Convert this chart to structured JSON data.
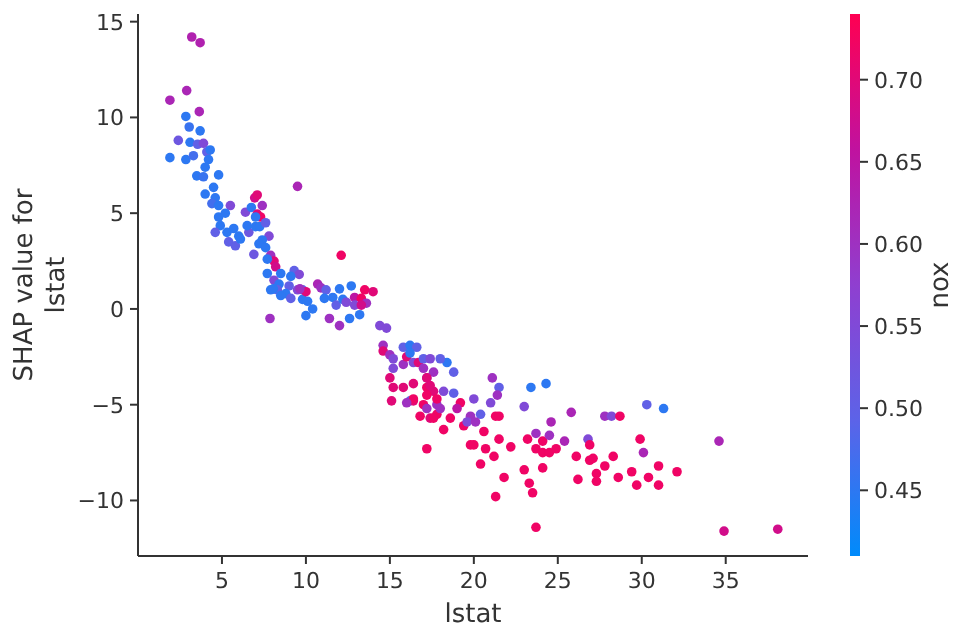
{
  "chart_data": {
    "type": "scatter",
    "xlabel": "lstat",
    "ylabel": "SHAP value for\nlstat",
    "clabel": "nox",
    "xlim": [
      0,
      39.9
    ],
    "ylim": [
      -12.9,
      15.4
    ],
    "xticks": [
      5,
      10,
      15,
      20,
      25,
      30,
      35
    ],
    "yticks": [
      -10,
      -5,
      0,
      5,
      10,
      15
    ],
    "clim": [
      0.41,
      0.74
    ],
    "cticks": [
      0.45,
      {
        "value": 0.5,
        "label": "0.50"
      },
      0.55,
      {
        "value": 0.6,
        "label": "0.60"
      },
      0.65,
      {
        "value": 0.7,
        "label": "0.70"
      }
    ],
    "grid": false,
    "x": [
      1.9,
      3.2,
      3.7,
      2.9,
      3.65,
      1.9,
      2.4,
      2.85,
      3.05,
      3.1,
      3.7,
      2.85,
      3.3,
      3.55,
      3.9,
      4.1,
      4.3,
      4.2,
      3.5,
      3.9,
      4.8,
      4.0,
      4.5,
      4.0,
      4.6,
      4.4,
      4.8,
      5.5,
      5.2,
      4.8,
      4.9,
      4.6,
      5.3,
      5.7,
      6.0,
      5.4,
      5.8,
      6.1,
      6.6,
      6.5,
      6.4,
      6.95,
      7.1,
      7.4,
      6.75,
      7.1,
      7.3,
      7.0,
      7.0,
      7.25,
      7.6,
      7.8,
      7.4,
      7.2,
      7.6,
      6.9,
      7.9,
      8.1,
      7.7,
      8.2,
      9.5,
      12.1,
      7.7,
      8.1,
      8.4,
      9.3,
      9.6,
      9.1,
      8.5,
      9.0,
      9.5,
      9.8,
      8.8,
      8.3,
      8.5,
      7.9,
      9.1,
      9.8,
      10.1,
      10.0,
      10.7,
      10.9,
      11.2,
      11.6,
      11.1,
      11.8,
      12.2,
      12.7,
      12.4,
      12.9,
      13.3,
      13.5,
      13.6,
      12.9,
      13.3,
      7.86,
      8.06,
      9.64,
      10.0,
      10.4,
      11.4,
      12.0,
      12.0,
      12.6,
      13.2,
      14.0,
      14.4,
      14.8,
      14.6,
      14.6,
      15.0,
      15.2,
      15.2,
      15.0,
      15.2,
      15.1,
      15.8,
      15.8,
      16.2,
      16.6,
      16.0,
      16.4,
      16.7,
      15.8,
      16.4,
      16.2,
      16.4,
      17.0,
      17.2,
      17.2,
      17.6,
      17.2,
      17.4,
      17.8,
      17.8,
      17.0,
      16.2,
      17.4,
      18.4,
      18.0,
      17.0,
      17.6,
      18.8,
      17.2,
      17.4,
      18.2,
      18.8,
      17.2,
      17.8,
      16.4,
      16.0,
      17.2,
      18.0,
      19.2,
      16.8,
      17.6,
      18.6,
      19.0,
      18.2,
      19.4,
      19.8,
      20.0,
      20.4,
      19.6,
      20.1,
      21.1,
      21.5,
      21.4,
      21.0,
      21.3,
      21.5,
      20.6,
      21.5,
      19.8,
      20.0,
      20.4,
      20.7,
      21.2,
      22.2,
      21.8,
      21.3,
      23.0,
      23.4,
      24.3,
      23.2,
      23.7,
      24.1,
      24.5,
      24.6,
      23.7,
      24.1,
      24.5,
      24.9,
      25.4,
      25.8,
      23.0,
      24.1,
      23.3,
      23.5,
      23.7,
      26.1,
      26.2,
      26.8,
      26.9,
      26.9,
      27.1,
      27.3,
      27.3,
      27.8,
      28.2,
      27.8,
      28.3,
      28.7,
      28.6,
      29.4,
      29.7,
      29.9,
      30.1,
      30.3,
      30.4,
      31.0,
      31.0,
      31.3,
      32.1,
      34.6,
      34.9,
      38.1
    ],
    "values": [
      10.9,
      14.2,
      13.9,
      11.4,
      10.3,
      7.9,
      8.8,
      10.05,
      9.5,
      8.7,
      9.3,
      7.8,
      8.0,
      8.6,
      8.65,
      8.2,
      8.3,
      7.8,
      6.95,
      6.9,
      7.0,
      7.4,
      6.35,
      6.0,
      5.8,
      5.5,
      5.4,
      5.4,
      5.0,
      4.8,
      4.35,
      4.0,
      4.0,
      4.2,
      3.8,
      3.5,
      3.3,
      3.65,
      4.0,
      4.35,
      5.05,
      5.8,
      5.95,
      5.4,
      5.3,
      4.95,
      4.8,
      4.8,
      4.3,
      4.3,
      4.5,
      3.8,
      3.6,
      3.4,
      3.2,
      2.85,
      2.8,
      2.5,
      2.6,
      2.2,
      6.4,
      2.8,
      1.85,
      1.5,
      1.3,
      2.0,
      1.8,
      1.7,
      1.85,
      1.2,
      1.0,
      1.0,
      0.8,
      1.0,
      0.7,
      1.0,
      0.55,
      0.5,
      0.4,
      0.9,
      1.3,
      1.1,
      1.0,
      0.6,
      0.55,
      0.2,
      0.5,
      1.2,
      0.35,
      0.6,
      0.55,
      1.0,
      0.3,
      0.2,
      0.2,
      -0.5,
      1.05,
      1.05,
      -0.35,
      0.0,
      -0.5,
      -0.87,
      1.05,
      -0.5,
      -0.3,
      0.9,
      -0.87,
      -1.0,
      -1.9,
      -2.2,
      -2.4,
      -2.6,
      -3.1,
      -3.6,
      -4.1,
      -4.8,
      -2.9,
      -2.0,
      -1.9,
      -2.0,
      -2.5,
      -2.8,
      -2.8,
      -4.1,
      -3.9,
      -4.8,
      -4.8,
      -5.0,
      -3.6,
      -4.1,
      -4.3,
      -7.3,
      -5.7,
      -5.5,
      -5.0,
      -2.6,
      -2.3,
      -2.6,
      -2.8,
      -2.6,
      -3.1,
      -3.3,
      -3.3,
      -3.6,
      -4.0,
      -4.3,
      -4.4,
      -4.5,
      -4.7,
      -4.7,
      -4.9,
      -5.2,
      -5.2,
      -4.9,
      -5.6,
      -5.7,
      -5.7,
      -5.2,
      -6.3,
      -6.1,
      -5.6,
      -4.7,
      -5.5,
      -5.9,
      -5.9,
      -3.6,
      -4.1,
      -4.5,
      -4.9,
      -5.6,
      -5.6,
      -6.4,
      -6.8,
      -7.1,
      -7.1,
      -8.1,
      -7.3,
      -7.7,
      -7.2,
      -8.8,
      -9.8,
      -5.1,
      -4.1,
      -3.9,
      -6.8,
      -6.5,
      -6.9,
      -6.6,
      -5.9,
      -7.3,
      -7.5,
      -7.5,
      -7.3,
      -6.9,
      -5.4,
      -8.4,
      -8.3,
      -9.1,
      -9.6,
      -11.4,
      -7.7,
      -8.9,
      -6.8,
      -7.1,
      -7.9,
      -7.8,
      -8.6,
      -9.0,
      -5.6,
      -5.6,
      -8.2,
      -7.7,
      -5.6,
      -8.8,
      -8.5,
      -9.2,
      -6.8,
      -7.5,
      -5.0,
      -8.8,
      -8.2,
      -9.2,
      -5.2,
      -8.5,
      -6.9,
      -11.6,
      -11.5
    ],
    "cvalues": [
      0.62,
      0.63,
      0.63,
      0.62,
      0.62,
      0.45,
      0.52,
      0.45,
      0.46,
      0.45,
      0.45,
      0.45,
      0.47,
      0.5,
      0.55,
      0.5,
      0.45,
      0.45,
      0.45,
      0.46,
      0.45,
      0.45,
      0.45,
      0.45,
      0.45,
      0.47,
      0.45,
      0.55,
      0.45,
      0.45,
      0.45,
      0.5,
      0.45,
      0.45,
      0.45,
      0.5,
      0.5,
      0.45,
      0.52,
      0.45,
      0.55,
      0.68,
      0.7,
      0.6,
      0.45,
      0.7,
      0.72,
      0.45,
      0.45,
      0.45,
      0.5,
      0.55,
      0.45,
      0.45,
      0.45,
      0.52,
      0.6,
      0.7,
      0.45,
      0.68,
      0.62,
      0.72,
      0.45,
      0.55,
      0.45,
      0.5,
      0.55,
      0.45,
      0.45,
      0.5,
      0.55,
      0.5,
      0.45,
      0.5,
      0.45,
      0.45,
      0.5,
      0.45,
      0.45,
      0.7,
      0.62,
      0.6,
      0.5,
      0.45,
      0.45,
      0.5,
      0.45,
      0.45,
      0.55,
      0.65,
      0.72,
      0.72,
      0.6,
      0.55,
      0.68,
      0.6,
      0.45,
      0.6,
      0.45,
      0.45,
      0.6,
      0.6,
      0.45,
      0.45,
      0.45,
      0.7,
      0.55,
      0.55,
      0.6,
      0.7,
      0.6,
      0.55,
      0.55,
      0.7,
      0.7,
      0.7,
      0.6,
      0.5,
      0.45,
      0.5,
      0.7,
      0.55,
      0.7,
      0.7,
      0.7,
      0.5,
      0.7,
      0.72,
      0.6,
      0.72,
      0.7,
      0.72,
      0.7,
      0.72,
      0.6,
      0.5,
      0.45,
      0.55,
      0.45,
      0.5,
      0.6,
      0.6,
      0.5,
      0.7,
      0.7,
      0.55,
      0.5,
      0.72,
      0.72,
      0.72,
      0.6,
      0.6,
      0.6,
      0.72,
      0.72,
      0.72,
      0.72,
      0.65,
      0.72,
      0.72,
      0.6,
      0.55,
      0.5,
      0.55,
      0.6,
      0.6,
      0.5,
      0.6,
      0.55,
      0.72,
      0.72,
      0.72,
      0.72,
      0.72,
      0.72,
      0.72,
      0.72,
      0.72,
      0.72,
      0.72,
      0.72,
      0.55,
      0.45,
      0.45,
      0.72,
      0.6,
      0.72,
      0.6,
      0.62,
      0.72,
      0.72,
      0.72,
      0.72,
      0.62,
      0.62,
      0.72,
      0.72,
      0.72,
      0.72,
      0.72,
      0.72,
      0.72,
      0.55,
      0.72,
      0.72,
      0.72,
      0.72,
      0.72,
      0.6,
      0.55,
      0.72,
      0.72,
      0.72,
      0.72,
      0.72,
      0.72,
      0.72,
      0.62,
      0.5,
      0.72,
      0.72,
      0.72,
      0.45,
      0.72,
      0.62,
      0.68,
      0.68
    ]
  }
}
